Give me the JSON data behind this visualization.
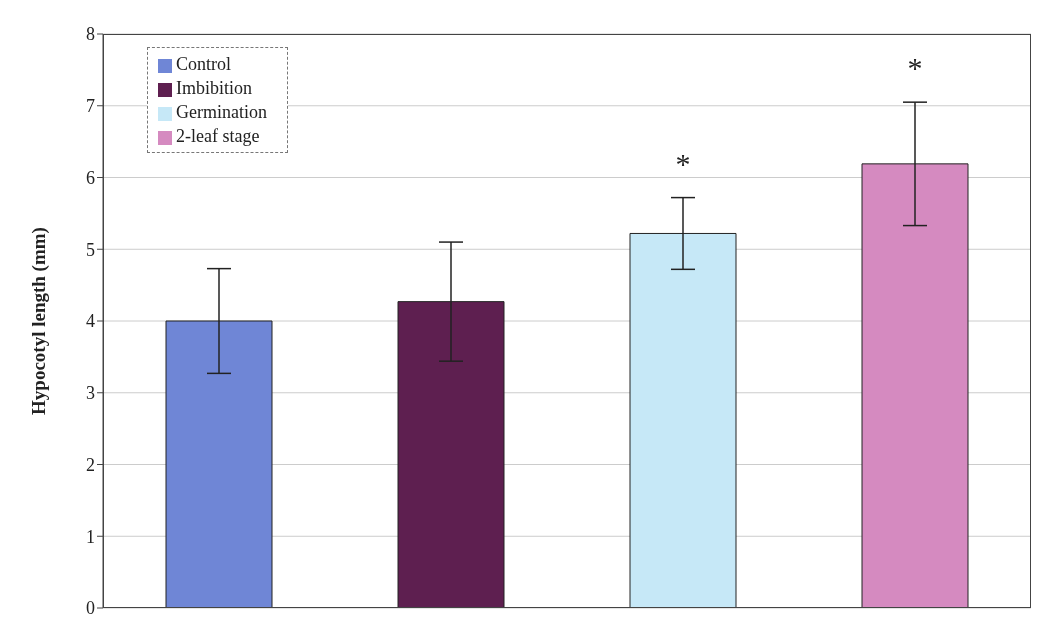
{
  "chart_data": {
    "type": "bar",
    "ylabel": "Hypocotyl length (mm)",
    "categories": [
      null,
      null,
      null,
      null
    ],
    "series": [
      {
        "name": "Control",
        "color": "#6f86d6",
        "values": [
          4.0,
          null,
          null,
          null
        ],
        "errors": [
          0.73,
          null,
          null,
          null
        ]
      },
      {
        "name": "Imbibition",
        "color": "#5e1f50",
        "values": [
          null,
          4.27,
          null,
          null
        ],
        "errors": [
          null,
          0.83,
          null,
          null
        ]
      },
      {
        "name": "Germination",
        "color": "#c6e8f7",
        "values": [
          null,
          null,
          5.22,
          null
        ],
        "errors": [
          null,
          null,
          0.5,
          null
        ]
      },
      {
        "name": "2-leaf stage",
        "color": "#d58ac0",
        "values": [
          null,
          null,
          null,
          6.19
        ],
        "errors": [
          null,
          null,
          null,
          0.86
        ]
      }
    ],
    "ylim": [
      0,
      8
    ],
    "yticks": [
      0,
      1,
      2,
      3,
      4,
      5,
      6,
      7,
      8
    ],
    "grid": "y",
    "legend": "top left",
    "tick_labels": "y",
    "annotations": [
      "*",
      "*"
    ]
  }
}
